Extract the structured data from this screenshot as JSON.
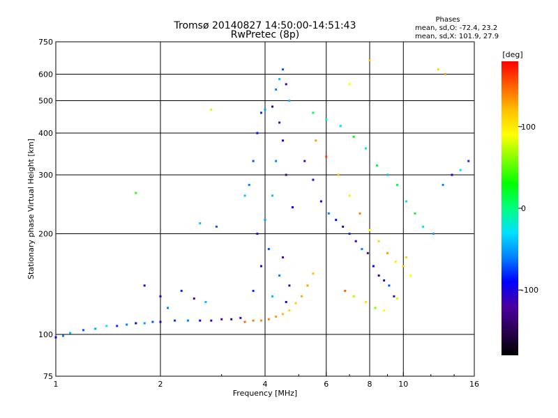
{
  "chart_data": {
    "type": "scatter",
    "title": "Tromsø 20140827 14:50:00-14:51:43",
    "subtitle": "RwPretec (8p)",
    "xlabel": "Frequency [MHz]",
    "ylabel": "Stationary phase Virtual Height [km]",
    "x_scale": "log",
    "y_scale": "log",
    "xlim": [
      1,
      16
    ],
    "ylim": [
      75,
      750
    ],
    "x_ticks": [
      1,
      2,
      4,
      6,
      8,
      10,
      16
    ],
    "y_ticks": [
      75,
      100,
      200,
      300,
      400,
      500,
      600,
      750
    ],
    "grid_x": [
      2,
      4,
      6,
      8,
      10
    ],
    "grid_y": [
      100,
      200,
      300,
      400,
      500,
      600
    ],
    "grid": true,
    "phases_header": "Phases",
    "phases_stats": [
      "mean, sd,O: -72.4, 23.2",
      "mean, sd,X: 101.9, 27.9"
    ],
    "colorbar": {
      "label": "[deg]",
      "ticks": [
        100,
        0,
        -100
      ],
      "range": [
        -180,
        180
      ],
      "colors": [
        "#000000",
        "#2a0050",
        "#4b00a0",
        "#0000ff",
        "#0080ff",
        "#00e0ff",
        "#00ff80",
        "#00ff00",
        "#80ff00",
        "#ffff00",
        "#ffc000",
        "#ff6000",
        "#ff0000"
      ]
    },
    "series": [
      {
        "points": [
          [
            1.0,
            98,
            -90
          ],
          [
            1.05,
            99,
            -60
          ],
          [
            1.1,
            101,
            -40
          ],
          [
            1.2,
            103,
            -70
          ],
          [
            1.3,
            104,
            -50
          ],
          [
            1.4,
            106,
            -30
          ],
          [
            1.5,
            106,
            -80
          ],
          [
            1.6,
            107,
            -60
          ],
          [
            1.7,
            108,
            -90
          ],
          [
            1.8,
            108,
            -50
          ],
          [
            1.9,
            109,
            -70
          ],
          [
            2.0,
            109,
            -100
          ],
          [
            2.2,
            110,
            -80
          ],
          [
            2.4,
            110,
            -60
          ],
          [
            2.6,
            110,
            -90
          ],
          [
            2.8,
            110,
            -110
          ],
          [
            3.0,
            111,
            -120
          ],
          [
            3.2,
            111,
            -130
          ],
          [
            3.4,
            112,
            -110
          ]
        ]
      },
      {
        "points": [
          [
            3.5,
            109,
            150
          ],
          [
            3.7,
            110,
            140
          ],
          [
            3.9,
            110,
            135
          ],
          [
            4.1,
            111,
            140
          ],
          [
            4.3,
            113,
            130
          ],
          [
            4.5,
            115,
            120
          ],
          [
            4.7,
            118,
            110
          ],
          [
            4.9,
            124,
            115
          ],
          [
            5.1,
            130,
            125
          ],
          [
            5.3,
            140,
            130
          ],
          [
            5.5,
            152,
            120
          ]
        ]
      },
      {
        "points": [
          [
            3.5,
            260,
            -40
          ],
          [
            3.6,
            280,
            -60
          ],
          [
            3.7,
            330,
            -70
          ],
          [
            3.8,
            400,
            -90
          ],
          [
            3.9,
            460,
            -80
          ],
          [
            4.0,
            470,
            -50
          ],
          [
            4.2,
            480,
            -100
          ],
          [
            4.3,
            540,
            -60
          ],
          [
            4.4,
            580,
            -40
          ],
          [
            4.5,
            620,
            -70
          ],
          [
            4.6,
            560,
            -110
          ],
          [
            4.7,
            500,
            -40
          ],
          [
            4.4,
            430,
            -120
          ],
          [
            4.5,
            380,
            -100
          ],
          [
            4.3,
            330,
            -60
          ],
          [
            4.6,
            300,
            -130
          ],
          [
            4.2,
            260,
            -40
          ],
          [
            4.8,
            240,
            -90
          ],
          [
            4.0,
            220,
            -50
          ],
          [
            3.8,
            200,
            -110
          ],
          [
            4.1,
            180,
            -70
          ],
          [
            4.5,
            170,
            -120
          ],
          [
            3.9,
            160,
            -100
          ],
          [
            4.4,
            150,
            -60
          ],
          [
            4.7,
            140,
            -130
          ],
          [
            3.7,
            135,
            -80
          ],
          [
            4.2,
            130,
            -40
          ],
          [
            4.6,
            125,
            -100
          ]
        ]
      },
      {
        "points": [
          [
            5.2,
            330,
            -120
          ],
          [
            5.5,
            290,
            -110
          ],
          [
            5.8,
            250,
            -100
          ],
          [
            6.1,
            230,
            -60
          ],
          [
            6.4,
            220,
            -90
          ],
          [
            6.7,
            210,
            -130
          ],
          [
            7.0,
            200,
            -80
          ],
          [
            7.3,
            190,
            -110
          ],
          [
            7.6,
            180,
            -60
          ],
          [
            7.9,
            175,
            -120
          ],
          [
            8.2,
            160,
            -90
          ],
          [
            8.5,
            150,
            -130
          ],
          [
            8.8,
            145,
            -100
          ],
          [
            9.1,
            140,
            -70
          ],
          [
            9.4,
            130,
            -120
          ]
        ]
      },
      {
        "points": [
          [
            5.6,
            380,
            130
          ],
          [
            6.0,
            340,
            160
          ],
          [
            6.5,
            300,
            120
          ],
          [
            7.0,
            260,
            100
          ],
          [
            7.5,
            230,
            140
          ],
          [
            8.0,
            205,
            90
          ],
          [
            8.5,
            190,
            110
          ],
          [
            9.0,
            175,
            130
          ],
          [
            9.5,
            165,
            100
          ],
          [
            10.0,
            160,
            120
          ],
          [
            10.5,
            150,
            90
          ],
          [
            7.2,
            130,
            70
          ],
          [
            7.8,
            125,
            100
          ],
          [
            8.3,
            120,
            60
          ],
          [
            8.8,
            118,
            90
          ],
          [
            6.8,
            135,
            150
          ],
          [
            9.6,
            128,
            80
          ],
          [
            10.2,
            170,
            110
          ]
        ]
      },
      {
        "points": [
          [
            5.5,
            460,
            10
          ],
          [
            6.0,
            440,
            -20
          ],
          [
            6.6,
            420,
            -30
          ],
          [
            7.2,
            390,
            30
          ],
          [
            7.8,
            360,
            -10
          ],
          [
            8.4,
            320,
            20
          ],
          [
            9.0,
            300,
            -40
          ],
          [
            9.6,
            280,
            10
          ],
          [
            10.2,
            250,
            -30
          ],
          [
            10.8,
            230,
            20
          ],
          [
            11.4,
            210,
            -20
          ],
          [
            12.2,
            200,
            -50
          ],
          [
            13.0,
            280,
            -60
          ],
          [
            13.8,
            300,
            -100
          ],
          [
            14.6,
            310,
            -30
          ],
          [
            15.4,
            330,
            -80
          ],
          [
            12.6,
            620,
            110
          ],
          [
            13.2,
            600,
            130
          ],
          [
            8.0,
            660,
            120
          ],
          [
            7.0,
            560,
            90
          ],
          [
            2.8,
            470,
            80
          ],
          [
            1.7,
            265,
            40
          ],
          [
            2.6,
            215,
            -40
          ],
          [
            2.9,
            210,
            -70
          ],
          [
            2.0,
            130,
            -100
          ],
          [
            2.1,
            120,
            -60
          ],
          [
            2.3,
            135,
            -80
          ],
          [
            2.5,
            128,
            -120
          ],
          [
            1.8,
            140,
            -110
          ],
          [
            2.7,
            125,
            -40
          ]
        ]
      }
    ]
  }
}
